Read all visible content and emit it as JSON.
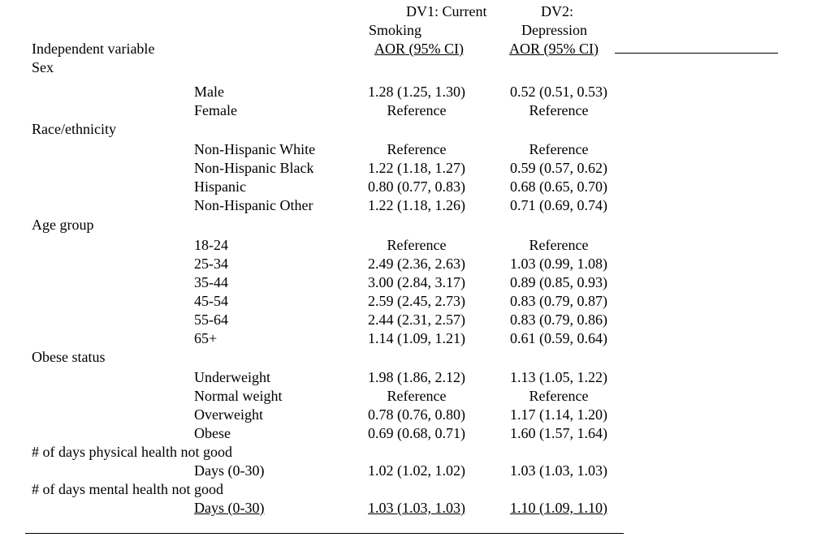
{
  "header": {
    "dv1_line1": "DV1: Current",
    "dv1_line2": "Smoking",
    "dv1_sub": "AOR (95% CI)",
    "dv2_line1": "DV2:",
    "dv2_line2": "Depression",
    "dv2_sub": "AOR (95% CI)",
    "iv_label": "Independent variable"
  },
  "groups": [
    {
      "label": "Sex",
      "rows": [
        {
          "level": "Male",
          "dv1": "1.28 (1.25, 1.30)",
          "dv2": "0.52 (0.51, 0.53)"
        },
        {
          "level": "Female",
          "dv1": "Reference",
          "dv2": "Reference"
        }
      ]
    },
    {
      "label": "Race/ethnicity",
      "rows": [
        {
          "level": "Non-Hispanic White",
          "dv1": "Reference",
          "dv2": "Reference"
        },
        {
          "level": "Non-Hispanic Black",
          "dv1": "1.22 (1.18, 1.27)",
          "dv2": "0.59 (0.57, 0.62)"
        },
        {
          "level": "Hispanic",
          "dv1": "0.80 (0.77, 0.83)",
          "dv2": "0.68 (0.65, 0.70)"
        },
        {
          "level": "Non-Hispanic Other",
          "dv1": "1.22 (1.18, 1.26)",
          "dv2": "0.71 (0.69, 0.74)"
        }
      ]
    },
    {
      "label": "Age group",
      "rows": [
        {
          "level": "18-24",
          "dv1": "Reference",
          "dv2": "Reference"
        },
        {
          "level": "25-34",
          "dv1": "2.49 (2.36, 2.63)",
          "dv2": "1.03 (0.99, 1.08)"
        },
        {
          "level": "35-44",
          "dv1": "3.00 (2.84, 3.17)",
          "dv2": "0.89 (0.85, 0.93)"
        },
        {
          "level": "45-54",
          "dv1": "2.59 (2.45, 2.73)",
          "dv2": "0.83 (0.79, 0.87)"
        },
        {
          "level": "55-64",
          "dv1": "2.44 (2.31, 2.57)",
          "dv2": "0.83 (0.79, 0.86)"
        },
        {
          "level": "65+",
          "dv1": "1.14 (1.09, 1.21)",
          "dv2": "0.61 (0.59, 0.64)"
        }
      ]
    },
    {
      "label": "Obese status",
      "rows": [
        {
          "level": "Underweight",
          "dv1": "1.98 (1.86, 2.12)",
          "dv2": "1.13 (1.05, 1.22)"
        },
        {
          "level": "Normal weight",
          "dv1": "Reference",
          "dv2": "Reference"
        },
        {
          "level": "Overweight",
          "dv1": "0.78 (0.76, 0.80)",
          "dv2": "1.17 (1.14, 1.20)"
        },
        {
          "level": "Obese",
          "dv1": "0.69 (0.68, 0.71)",
          "dv2": "1.60 (1.57, 1.64)"
        }
      ]
    },
    {
      "label": "# of days physical health not good",
      "rows": [
        {
          "level": "Days (0-30)",
          "dv1": "1.02 (1.02, 1.02)",
          "dv2": "1.03 (1.03, 1.03)"
        }
      ]
    },
    {
      "label": "# of days mental health not good",
      "rows": [
        {
          "level": "Days (0-30)",
          "dv1": "1.03 (1.03, 1.03)",
          "dv2": "1.10 (1.09, 1.10)"
        }
      ]
    }
  ]
}
